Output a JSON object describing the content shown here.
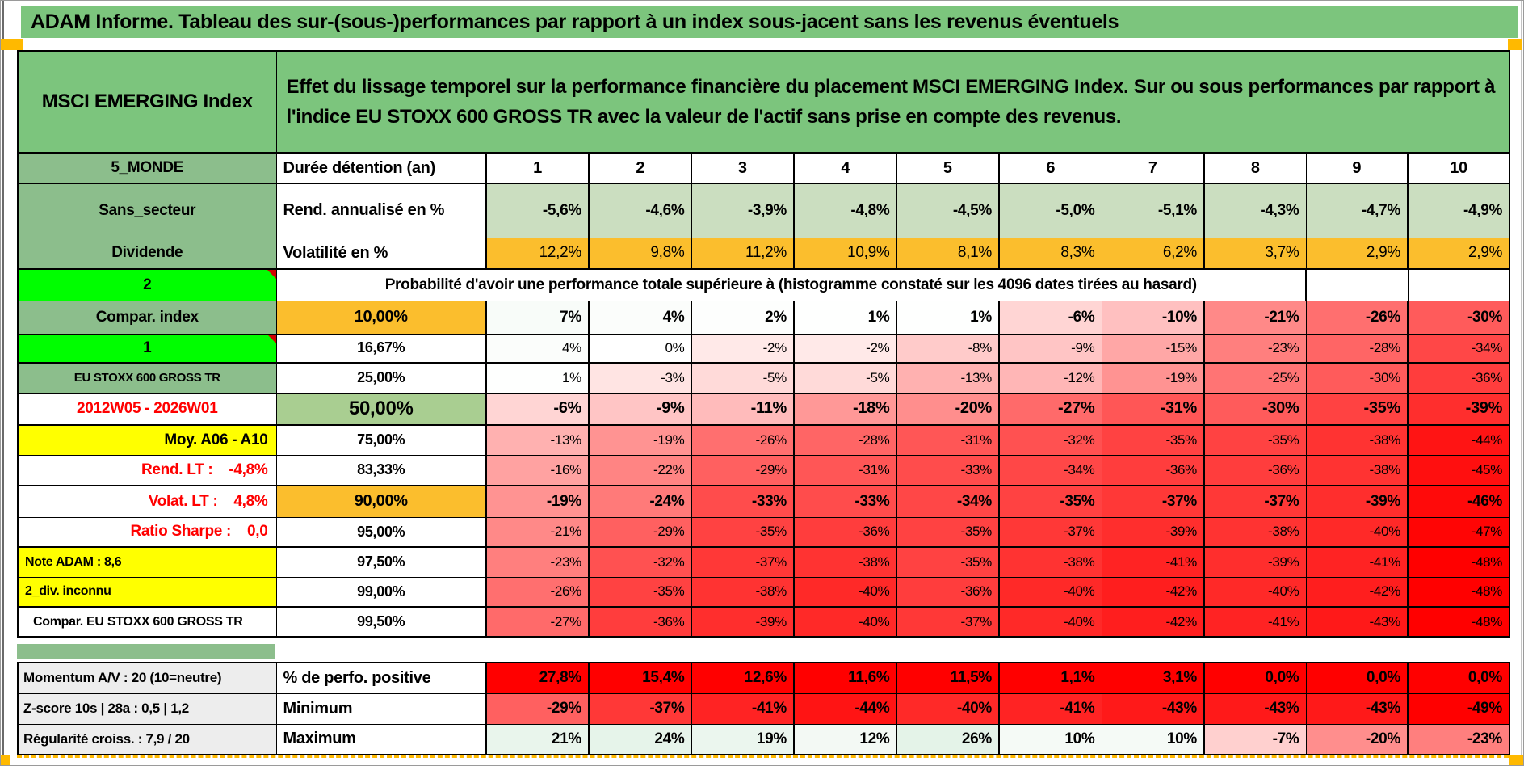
{
  "title": "ADAM Informe. Tableau des sur-(sous-)performances par rapport à un index sous-jacent sans les revenus éventuels",
  "header": {
    "asset_name": "MSCI EMERGING Index",
    "description": "Effet du lissage temporel sur la performance financière du placement MSCI EMERGING Index. Sur ou sous performances par rapport à l'indice EU STOXX 600 GROSS TR avec la valeur de l'actif sans prise en compte des revenus."
  },
  "colors": {
    "green_header": "#7CC57D",
    "green_label": "#8CBE8C",
    "green_50": "#A9CE91",
    "green_rend": "#CBDEC0",
    "bright_green": "#00FE00",
    "yellow": "#FFFF00",
    "orange": "#FBBE2D",
    "red_full": "#FF0000",
    "grey_label": "#EDEDED",
    "red_text": "#FF0000",
    "page_break_orange": "#FFB900"
  },
  "duration_row": {
    "label": "5_MONDE",
    "metric": "Durée détention (an)",
    "cols": [
      "1",
      "2",
      "3",
      "4",
      "5",
      "6",
      "7",
      "8",
      "9",
      "10"
    ]
  },
  "rend_row": {
    "label": "Sans_secteur",
    "metric": "Rend. annualisé en %",
    "values": [
      "-5,6%",
      "-4,6%",
      "-3,9%",
      "-4,8%",
      "-4,5%",
      "-5,0%",
      "-5,1%",
      "-4,3%",
      "-4,7%",
      "-4,9%"
    ]
  },
  "vol_row": {
    "label": "Dividende",
    "metric": "Volatilité en %",
    "values": [
      "12,2%",
      "9,8%",
      "11,2%",
      "10,9%",
      "8,1%",
      "8,3%",
      "6,2%",
      "3,7%",
      "2,9%",
      "2,9%"
    ]
  },
  "prob_header": {
    "label": "2",
    "text": "Probabilité d'avoir une performance totale supérieure à (histogramme constaté sur les 4096 dates tirées au hasard)"
  },
  "prob_rows": [
    {
      "label": "Compar. index",
      "label_style": "green",
      "pct": "10,00%",
      "pct_style": "orange big10",
      "vstyle": "v-bold",
      "values": [
        "7%",
        "4%",
        "2%",
        "1%",
        "1%",
        "-6%",
        "-10%",
        "-21%",
        "-26%",
        "-30%"
      ]
    },
    {
      "label": "1",
      "label_style": "bright corner",
      "pct": "16,67%",
      "pct_style": "",
      "vstyle": "v-normal",
      "values": [
        "4%",
        "0%",
        "-2%",
        "-2%",
        "-8%",
        "-9%",
        "-15%",
        "-23%",
        "-28%",
        "-34%"
      ]
    },
    {
      "label": "EU STOXX 600 GROSS TR",
      "label_style": "green small",
      "pct": "25,00%",
      "pct_style": "",
      "vstyle": "v-normal",
      "values": [
        "1%",
        "-3%",
        "-5%",
        "-5%",
        "-13%",
        "-12%",
        "-19%",
        "-25%",
        "-30%",
        "-36%"
      ]
    },
    {
      "label": "2012W05 - 2026W01",
      "label_style": "white redtxt",
      "pct": "50,00%",
      "pct_style": "green50 big50",
      "vstyle": "v-big",
      "values": [
        "-6%",
        "-9%",
        "-11%",
        "-18%",
        "-20%",
        "-27%",
        "-31%",
        "-30%",
        "-35%",
        "-39%"
      ]
    },
    {
      "label": "Moy. A06 - A10",
      "label_style": "yellow right",
      "pct": "75,00%",
      "pct_style": "",
      "vstyle": "v-normal",
      "values": [
        "-13%",
        "-19%",
        "-26%",
        "-28%",
        "-31%",
        "-32%",
        "-35%",
        "-35%",
        "-38%",
        "-44%"
      ]
    },
    {
      "label": "Rend. LT :    -4,8%",
      "label_style": "white redtxt right",
      "pct": "83,33%",
      "pct_style": "",
      "vstyle": "v-normal",
      "values": [
        "-16%",
        "-22%",
        "-29%",
        "-31%",
        "-33%",
        "-34%",
        "-36%",
        "-36%",
        "-38%",
        "-45%"
      ]
    },
    {
      "label": "Volat. LT :    4,8%",
      "label_style": "white redtxt right",
      "pct": "90,00%",
      "pct_style": "orange big10",
      "vstyle": "v-bold",
      "values": [
        "-19%",
        "-24%",
        "-33%",
        "-33%",
        "-34%",
        "-35%",
        "-37%",
        "-37%",
        "-39%",
        "-46%"
      ]
    },
    {
      "label": "Ratio Sharpe :    0,0",
      "label_style": "white redtxt right",
      "pct": "95,00%",
      "pct_style": "",
      "vstyle": "v-normal",
      "values": [
        "-21%",
        "-29%",
        "-35%",
        "-36%",
        "-35%",
        "-37%",
        "-39%",
        "-38%",
        "-40%",
        "-47%"
      ]
    },
    {
      "label": "Note ADAM : 8,6",
      "label_style": "yellow left tiny",
      "pct": "97,50%",
      "pct_style": "",
      "vstyle": "v-normal",
      "values": [
        "-23%",
        "-32%",
        "-37%",
        "-38%",
        "-35%",
        "-38%",
        "-41%",
        "-39%",
        "-41%",
        "-48%"
      ]
    },
    {
      "label": "2_div. inconnu",
      "label_style": "yellow left tiny underline",
      "pct": "99,00%",
      "pct_style": "",
      "vstyle": "v-normal",
      "values": [
        "-26%",
        "-35%",
        "-38%",
        "-40%",
        "-36%",
        "-40%",
        "-42%",
        "-40%",
        "-42%",
        "-48%"
      ]
    },
    {
      "label": "Compar. EU STOXX 600 GROSS TR",
      "label_style": "white left tiny indent",
      "pct": "99,50%",
      "pct_style": "",
      "vstyle": "v-normal",
      "values": [
        "-27%",
        "-36%",
        "-39%",
        "-40%",
        "-37%",
        "-40%",
        "-42%",
        "-41%",
        "-43%",
        "-48%"
      ]
    }
  ],
  "bottom_rows": [
    {
      "label": "Momentum A/V : 20 (10=neutre)",
      "metric": "% de perfo. positive",
      "fixed_bg": "red_full",
      "values": [
        "27,8%",
        "15,4%",
        "12,6%",
        "11,6%",
        "11,5%",
        "1,1%",
        "3,1%",
        "0,0%",
        "0,0%",
        "0,0%"
      ]
    },
    {
      "label": "Z-score 10s | 28a : 0,5 | 1,2",
      "metric": "Minimum",
      "fixed_bg": null,
      "values": [
        "-29%",
        "-37%",
        "-41%",
        "-44%",
        "-40%",
        "-41%",
        "-43%",
        "-43%",
        "-43%",
        "-49%"
      ]
    },
    {
      "label": "Régularité croiss. : 7,9 / 20",
      "metric": "Maximum",
      "fixed_bg": null,
      "values": [
        "21%",
        "24%",
        "19%",
        "12%",
        "26%",
        "10%",
        "10%",
        "-7%",
        "-20%",
        "-23%"
      ]
    }
  ]
}
